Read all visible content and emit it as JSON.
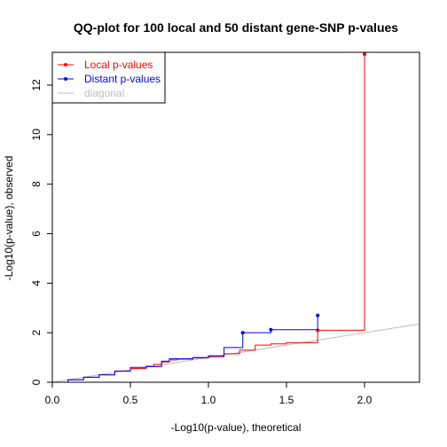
{
  "chart_data": {
    "type": "line",
    "title": "QQ-plot for 100 local and 50 distant gene-SNP p-values",
    "xlabel": "-Log10(p-value), theoretical",
    "ylabel": "-Log10(p-value), observed",
    "xlim": [
      0,
      2.35
    ],
    "ylim": [
      0,
      13.3
    ],
    "x_ticks": [
      {
        "value": 0,
        "label": "0.0"
      },
      {
        "value": 0.5,
        "label": "0.5"
      },
      {
        "value": 1.0,
        "label": "1.0"
      },
      {
        "value": 1.5,
        "label": "1.5"
      },
      {
        "value": 2.0,
        "label": "2.0"
      }
    ],
    "y_ticks": [
      {
        "value": 0,
        "label": "0"
      },
      {
        "value": 2,
        "label": "2"
      },
      {
        "value": 4,
        "label": "4"
      },
      {
        "value": 6,
        "label": "6"
      },
      {
        "value": 8,
        "label": "8"
      },
      {
        "value": 10,
        "label": "10"
      },
      {
        "value": 12,
        "label": "12"
      }
    ],
    "legend_position": "top-left",
    "series": [
      {
        "name": "Local p-values",
        "color": "#ff0000",
        "style": "step",
        "points": [
          [
            0,
            0
          ],
          [
            0.1,
            0.1
          ],
          [
            0.2,
            0.2
          ],
          [
            0.3,
            0.3
          ],
          [
            0.4,
            0.45
          ],
          [
            0.5,
            0.55
          ],
          [
            0.6,
            0.65
          ],
          [
            0.65,
            0.72
          ],
          [
            0.7,
            0.82
          ],
          [
            0.75,
            0.9
          ],
          [
            0.8,
            0.93
          ],
          [
            0.9,
            0.98
          ],
          [
            1.0,
            1.03
          ],
          [
            1.1,
            1.15
          ],
          [
            1.2,
            1.3
          ],
          [
            1.3,
            1.5
          ],
          [
            1.4,
            1.55
          ],
          [
            1.5,
            1.6
          ],
          [
            1.7,
            1.62
          ],
          [
            1.7,
            2.1
          ],
          [
            2.0,
            2.15
          ],
          [
            2.0,
            13.25
          ]
        ],
        "markers": [
          [
            1.7,
            2.1
          ],
          [
            2.0,
            13.25
          ]
        ]
      },
      {
        "name": "Distant p-values",
        "color": "#0000ff",
        "style": "step",
        "points": [
          [
            0,
            0
          ],
          [
            0.1,
            0.1
          ],
          [
            0.2,
            0.2
          ],
          [
            0.3,
            0.3
          ],
          [
            0.4,
            0.45
          ],
          [
            0.5,
            0.6
          ],
          [
            0.6,
            0.63
          ],
          [
            0.7,
            0.85
          ],
          [
            0.75,
            0.95
          ],
          [
            0.9,
            1.0
          ],
          [
            1.0,
            1.07
          ],
          [
            1.1,
            1.4
          ],
          [
            1.22,
            2.0
          ],
          [
            1.4,
            2.12
          ],
          [
            1.7,
            2.15
          ],
          [
            1.7,
            2.7
          ]
        ],
        "markers": [
          [
            1.22,
            2.0
          ],
          [
            1.4,
            2.12
          ],
          [
            1.7,
            2.7
          ]
        ]
      },
      {
        "name": "diagonal",
        "color": "#bebebe",
        "style": "line",
        "points": [
          [
            0,
            0
          ],
          [
            2.35,
            2.35
          ]
        ],
        "markers": []
      }
    ]
  }
}
